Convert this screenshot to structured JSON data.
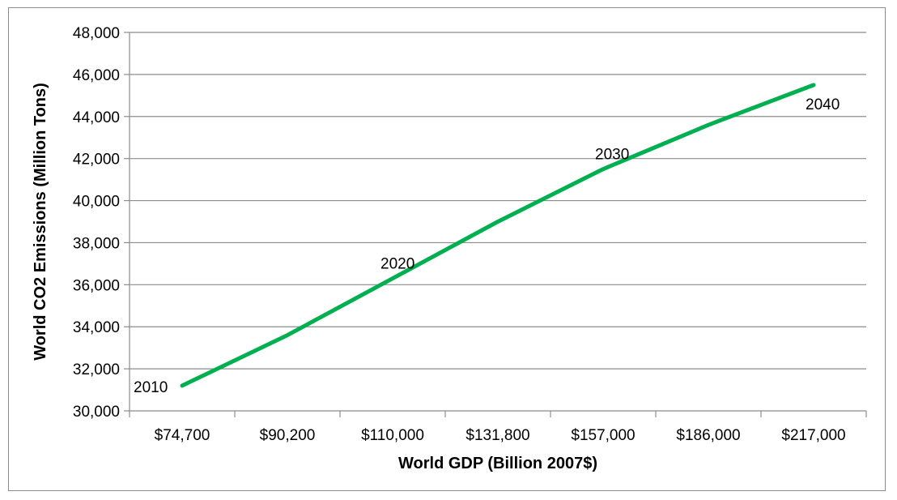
{
  "chart_data": {
    "type": "line",
    "title": "",
    "xlabel": "World GDP (Billion 2007$)",
    "ylabel": "World CO2 Emissions (Million Tons)",
    "categories": [
      "$74,700",
      "$90,200",
      "$110,000",
      "$131,800",
      "$157,000",
      "$186,000",
      "$217,000"
    ],
    "ylim": [
      30000,
      48000
    ],
    "yticks": [
      "30,000",
      "32,000",
      "34,000",
      "36,000",
      "38,000",
      "40,000",
      "42,000",
      "44,000",
      "46,000",
      "48,000"
    ],
    "grid": true,
    "legend": "none",
    "series": [
      {
        "color": "#00b050",
        "points": [
          {
            "x": "$74,700",
            "y": 31200
          },
          {
            "x": "$90,200",
            "y": 33600
          },
          {
            "x": "$110,000",
            "y": 36300
          },
          {
            "x": "$131,800",
            "y": 39000
          },
          {
            "x": "$157,000",
            "y": 41500
          },
          {
            "x": "$186,000",
            "y": 43600
          },
          {
            "x": "$217,000",
            "y": 45500
          }
        ]
      }
    ],
    "annotations": [
      {
        "text": "2010",
        "x": "$74,700",
        "y": 31200
      },
      {
        "text": "2020",
        "x": "$110,000",
        "y": 36300
      },
      {
        "text": "2030",
        "x": "$157,000",
        "y": 41500
      },
      {
        "text": "2040",
        "x": "$217,000",
        "y": 45500
      }
    ]
  }
}
